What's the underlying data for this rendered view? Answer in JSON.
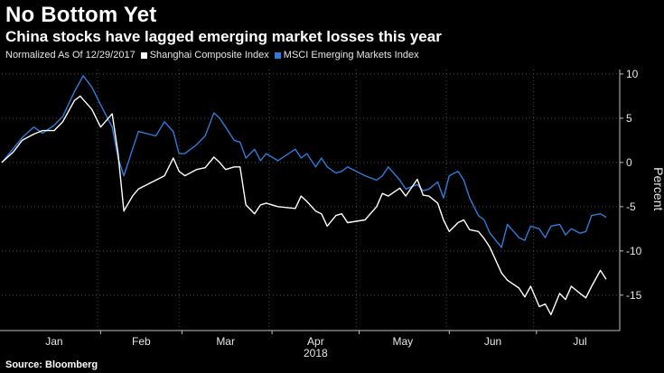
{
  "title": "No Bottom Yet",
  "subtitle": "China stocks have lagged emerging market losses this year",
  "legend": {
    "note": "Normalized As Of 12/29/2017",
    "items": [
      {
        "label": "Shanghai Composite Index",
        "color": "#ffffff"
      },
      {
        "label": "MSCI Emerging Markets Index",
        "color": "#2f7bd8"
      }
    ]
  },
  "source": "Source: Bloomberg",
  "chart_data": {
    "type": "line",
    "ylabel": "Percent",
    "ylim": [
      -19,
      10.5
    ],
    "yticks": [
      10,
      5,
      0,
      -5,
      -10,
      -15
    ],
    "x_axis": {
      "range": [
        "2017-12-29",
        "2018-07-25"
      ],
      "month_labels": [
        {
          "label": "Jan",
          "date": "2018-01-16"
        },
        {
          "label": "Feb",
          "date": "2018-02-15"
        },
        {
          "label": "Mar",
          "date": "2018-03-16"
        },
        {
          "label": "Apr",
          "date": "2018-04-16"
        },
        {
          "label": "May",
          "date": "2018-05-16"
        },
        {
          "label": "Jun",
          "date": "2018-06-16"
        },
        {
          "label": "Jul",
          "date": "2018-07-16"
        }
      ],
      "year_label": "2018",
      "year_label_date": "2018-04-16"
    },
    "series": [
      {
        "name": "Shanghai Composite Index",
        "color": "#ffffff",
        "points": [
          [
            "2017-12-29",
            0.0
          ],
          [
            "2018-01-02",
            1.2
          ],
          [
            "2018-01-05",
            2.5
          ],
          [
            "2018-01-09",
            3.2
          ],
          [
            "2018-01-12",
            3.6
          ],
          [
            "2018-01-16",
            3.6
          ],
          [
            "2018-01-19",
            4.6
          ],
          [
            "2018-01-23",
            7.0
          ],
          [
            "2018-01-25",
            7.5
          ],
          [
            "2018-01-29",
            6.0
          ],
          [
            "2018-02-01",
            4.0
          ],
          [
            "2018-02-05",
            5.5
          ],
          [
            "2018-02-07",
            1.0
          ],
          [
            "2018-02-09",
            -5.5
          ],
          [
            "2018-02-12",
            -3.8
          ],
          [
            "2018-02-14",
            -3.0
          ],
          [
            "2018-02-23",
            -1.5
          ],
          [
            "2018-02-26",
            0.5
          ],
          [
            "2018-02-28",
            -1.0
          ],
          [
            "2018-03-02",
            -1.5
          ],
          [
            "2018-03-06",
            -0.8
          ],
          [
            "2018-03-09",
            -0.6
          ],
          [
            "2018-03-12",
            0.6
          ],
          [
            "2018-03-14",
            0.0
          ],
          [
            "2018-03-16",
            -0.8
          ],
          [
            "2018-03-19",
            -0.5
          ],
          [
            "2018-03-21",
            -0.5
          ],
          [
            "2018-03-23",
            -4.8
          ],
          [
            "2018-03-26",
            -5.8
          ],
          [
            "2018-03-28",
            -4.8
          ],
          [
            "2018-03-30",
            -4.6
          ],
          [
            "2018-04-03",
            -5.0
          ],
          [
            "2018-04-09",
            -5.2
          ],
          [
            "2018-04-11",
            -3.8
          ],
          [
            "2018-04-13",
            -4.4
          ],
          [
            "2018-04-16",
            -5.5
          ],
          [
            "2018-04-18",
            -5.8
          ],
          [
            "2018-04-20",
            -7.2
          ],
          [
            "2018-04-23",
            -6.0
          ],
          [
            "2018-04-25",
            -5.8
          ],
          [
            "2018-04-27",
            -6.8
          ],
          [
            "2018-05-03",
            -6.5
          ],
          [
            "2018-05-07",
            -5.0
          ],
          [
            "2018-05-09",
            -3.5
          ],
          [
            "2018-05-11",
            -3.8
          ],
          [
            "2018-05-15",
            -2.9
          ],
          [
            "2018-05-17",
            -3.8
          ],
          [
            "2018-05-21",
            -1.9
          ],
          [
            "2018-05-23",
            -3.7
          ],
          [
            "2018-05-25",
            -3.8
          ],
          [
            "2018-05-28",
            -4.6
          ],
          [
            "2018-05-30",
            -6.5
          ],
          [
            "2018-06-01",
            -7.8
          ],
          [
            "2018-06-04",
            -6.8
          ],
          [
            "2018-06-06",
            -6.5
          ],
          [
            "2018-06-08",
            -7.6
          ],
          [
            "2018-06-11",
            -7.8
          ],
          [
            "2018-06-13",
            -8.6
          ],
          [
            "2018-06-15",
            -9.6
          ],
          [
            "2018-06-19",
            -12.5
          ],
          [
            "2018-06-21",
            -13.3
          ],
          [
            "2018-06-25",
            -14.2
          ],
          [
            "2018-06-27",
            -15.2
          ],
          [
            "2018-06-29",
            -14.0
          ],
          [
            "2018-07-02",
            -16.3
          ],
          [
            "2018-07-04",
            -16.0
          ],
          [
            "2018-07-06",
            -17.2
          ],
          [
            "2018-07-09",
            -14.8
          ],
          [
            "2018-07-11",
            -15.5
          ],
          [
            "2018-07-13",
            -14.0
          ],
          [
            "2018-07-16",
            -14.8
          ],
          [
            "2018-07-18",
            -15.3
          ],
          [
            "2018-07-20",
            -14.0
          ],
          [
            "2018-07-23",
            -12.2
          ],
          [
            "2018-07-25",
            -13.2
          ]
        ]
      },
      {
        "name": "MSCI Emerging Markets Index",
        "color": "#2f7bd8",
        "points": [
          [
            "2017-12-29",
            0.0
          ],
          [
            "2018-01-02",
            1.6
          ],
          [
            "2018-01-05",
            2.8
          ],
          [
            "2018-01-09",
            4.0
          ],
          [
            "2018-01-12",
            3.3
          ],
          [
            "2018-01-16",
            4.2
          ],
          [
            "2018-01-19",
            5.2
          ],
          [
            "2018-01-23",
            8.0
          ],
          [
            "2018-01-26",
            9.8
          ],
          [
            "2018-01-29",
            8.5
          ],
          [
            "2018-02-01",
            6.5
          ],
          [
            "2018-02-05",
            4.0
          ],
          [
            "2018-02-07",
            0.5
          ],
          [
            "2018-02-09",
            -1.5
          ],
          [
            "2018-02-12",
            1.5
          ],
          [
            "2018-02-14",
            3.5
          ],
          [
            "2018-02-20",
            3.0
          ],
          [
            "2018-02-23",
            4.6
          ],
          [
            "2018-02-26",
            3.5
          ],
          [
            "2018-02-28",
            1.0
          ],
          [
            "2018-03-02",
            1.0
          ],
          [
            "2018-03-06",
            2.0
          ],
          [
            "2018-03-09",
            3.0
          ],
          [
            "2018-03-12",
            5.6
          ],
          [
            "2018-03-14",
            5.0
          ],
          [
            "2018-03-16",
            4.0
          ],
          [
            "2018-03-19",
            2.5
          ],
          [
            "2018-03-21",
            2.3
          ],
          [
            "2018-03-23",
            0.5
          ],
          [
            "2018-03-26",
            1.5
          ],
          [
            "2018-03-28",
            0.2
          ],
          [
            "2018-03-30",
            1.0
          ],
          [
            "2018-04-03",
            0.2
          ],
          [
            "2018-04-09",
            1.5
          ],
          [
            "2018-04-11",
            0.5
          ],
          [
            "2018-04-13",
            1.0
          ],
          [
            "2018-04-16",
            -0.5
          ],
          [
            "2018-04-18",
            0.5
          ],
          [
            "2018-04-20",
            -0.5
          ],
          [
            "2018-04-23",
            -1.2
          ],
          [
            "2018-04-25",
            -1.0
          ],
          [
            "2018-04-27",
            -0.5
          ],
          [
            "2018-05-03",
            -1.5
          ],
          [
            "2018-05-07",
            -2.0
          ],
          [
            "2018-05-09",
            -1.5
          ],
          [
            "2018-05-11",
            -0.5
          ],
          [
            "2018-05-15",
            -2.0
          ],
          [
            "2018-05-17",
            -3.0
          ],
          [
            "2018-05-21",
            -2.5
          ],
          [
            "2018-05-23",
            -3.2
          ],
          [
            "2018-05-25",
            -3.0
          ],
          [
            "2018-05-28",
            -2.2
          ],
          [
            "2018-05-30",
            -4.0
          ],
          [
            "2018-06-01",
            -1.5
          ],
          [
            "2018-06-04",
            -1.0
          ],
          [
            "2018-06-06",
            -2.0
          ],
          [
            "2018-06-08",
            -4.0
          ],
          [
            "2018-06-11",
            -6.0
          ],
          [
            "2018-06-13",
            -6.5
          ],
          [
            "2018-06-15",
            -8.0
          ],
          [
            "2018-06-19",
            -9.6
          ],
          [
            "2018-06-21",
            -7.0
          ],
          [
            "2018-06-25",
            -8.5
          ],
          [
            "2018-06-27",
            -8.8
          ],
          [
            "2018-06-29",
            -7.2
          ],
          [
            "2018-07-02",
            -7.5
          ],
          [
            "2018-07-04",
            -8.5
          ],
          [
            "2018-07-06",
            -7.2
          ],
          [
            "2018-07-09",
            -7.0
          ],
          [
            "2018-07-11",
            -8.2
          ],
          [
            "2018-07-13",
            -7.5
          ],
          [
            "2018-07-16",
            -8.0
          ],
          [
            "2018-07-18",
            -7.8
          ],
          [
            "2018-07-20",
            -6.0
          ],
          [
            "2018-07-23",
            -5.8
          ],
          [
            "2018-07-25",
            -6.2
          ]
        ]
      }
    ]
  }
}
